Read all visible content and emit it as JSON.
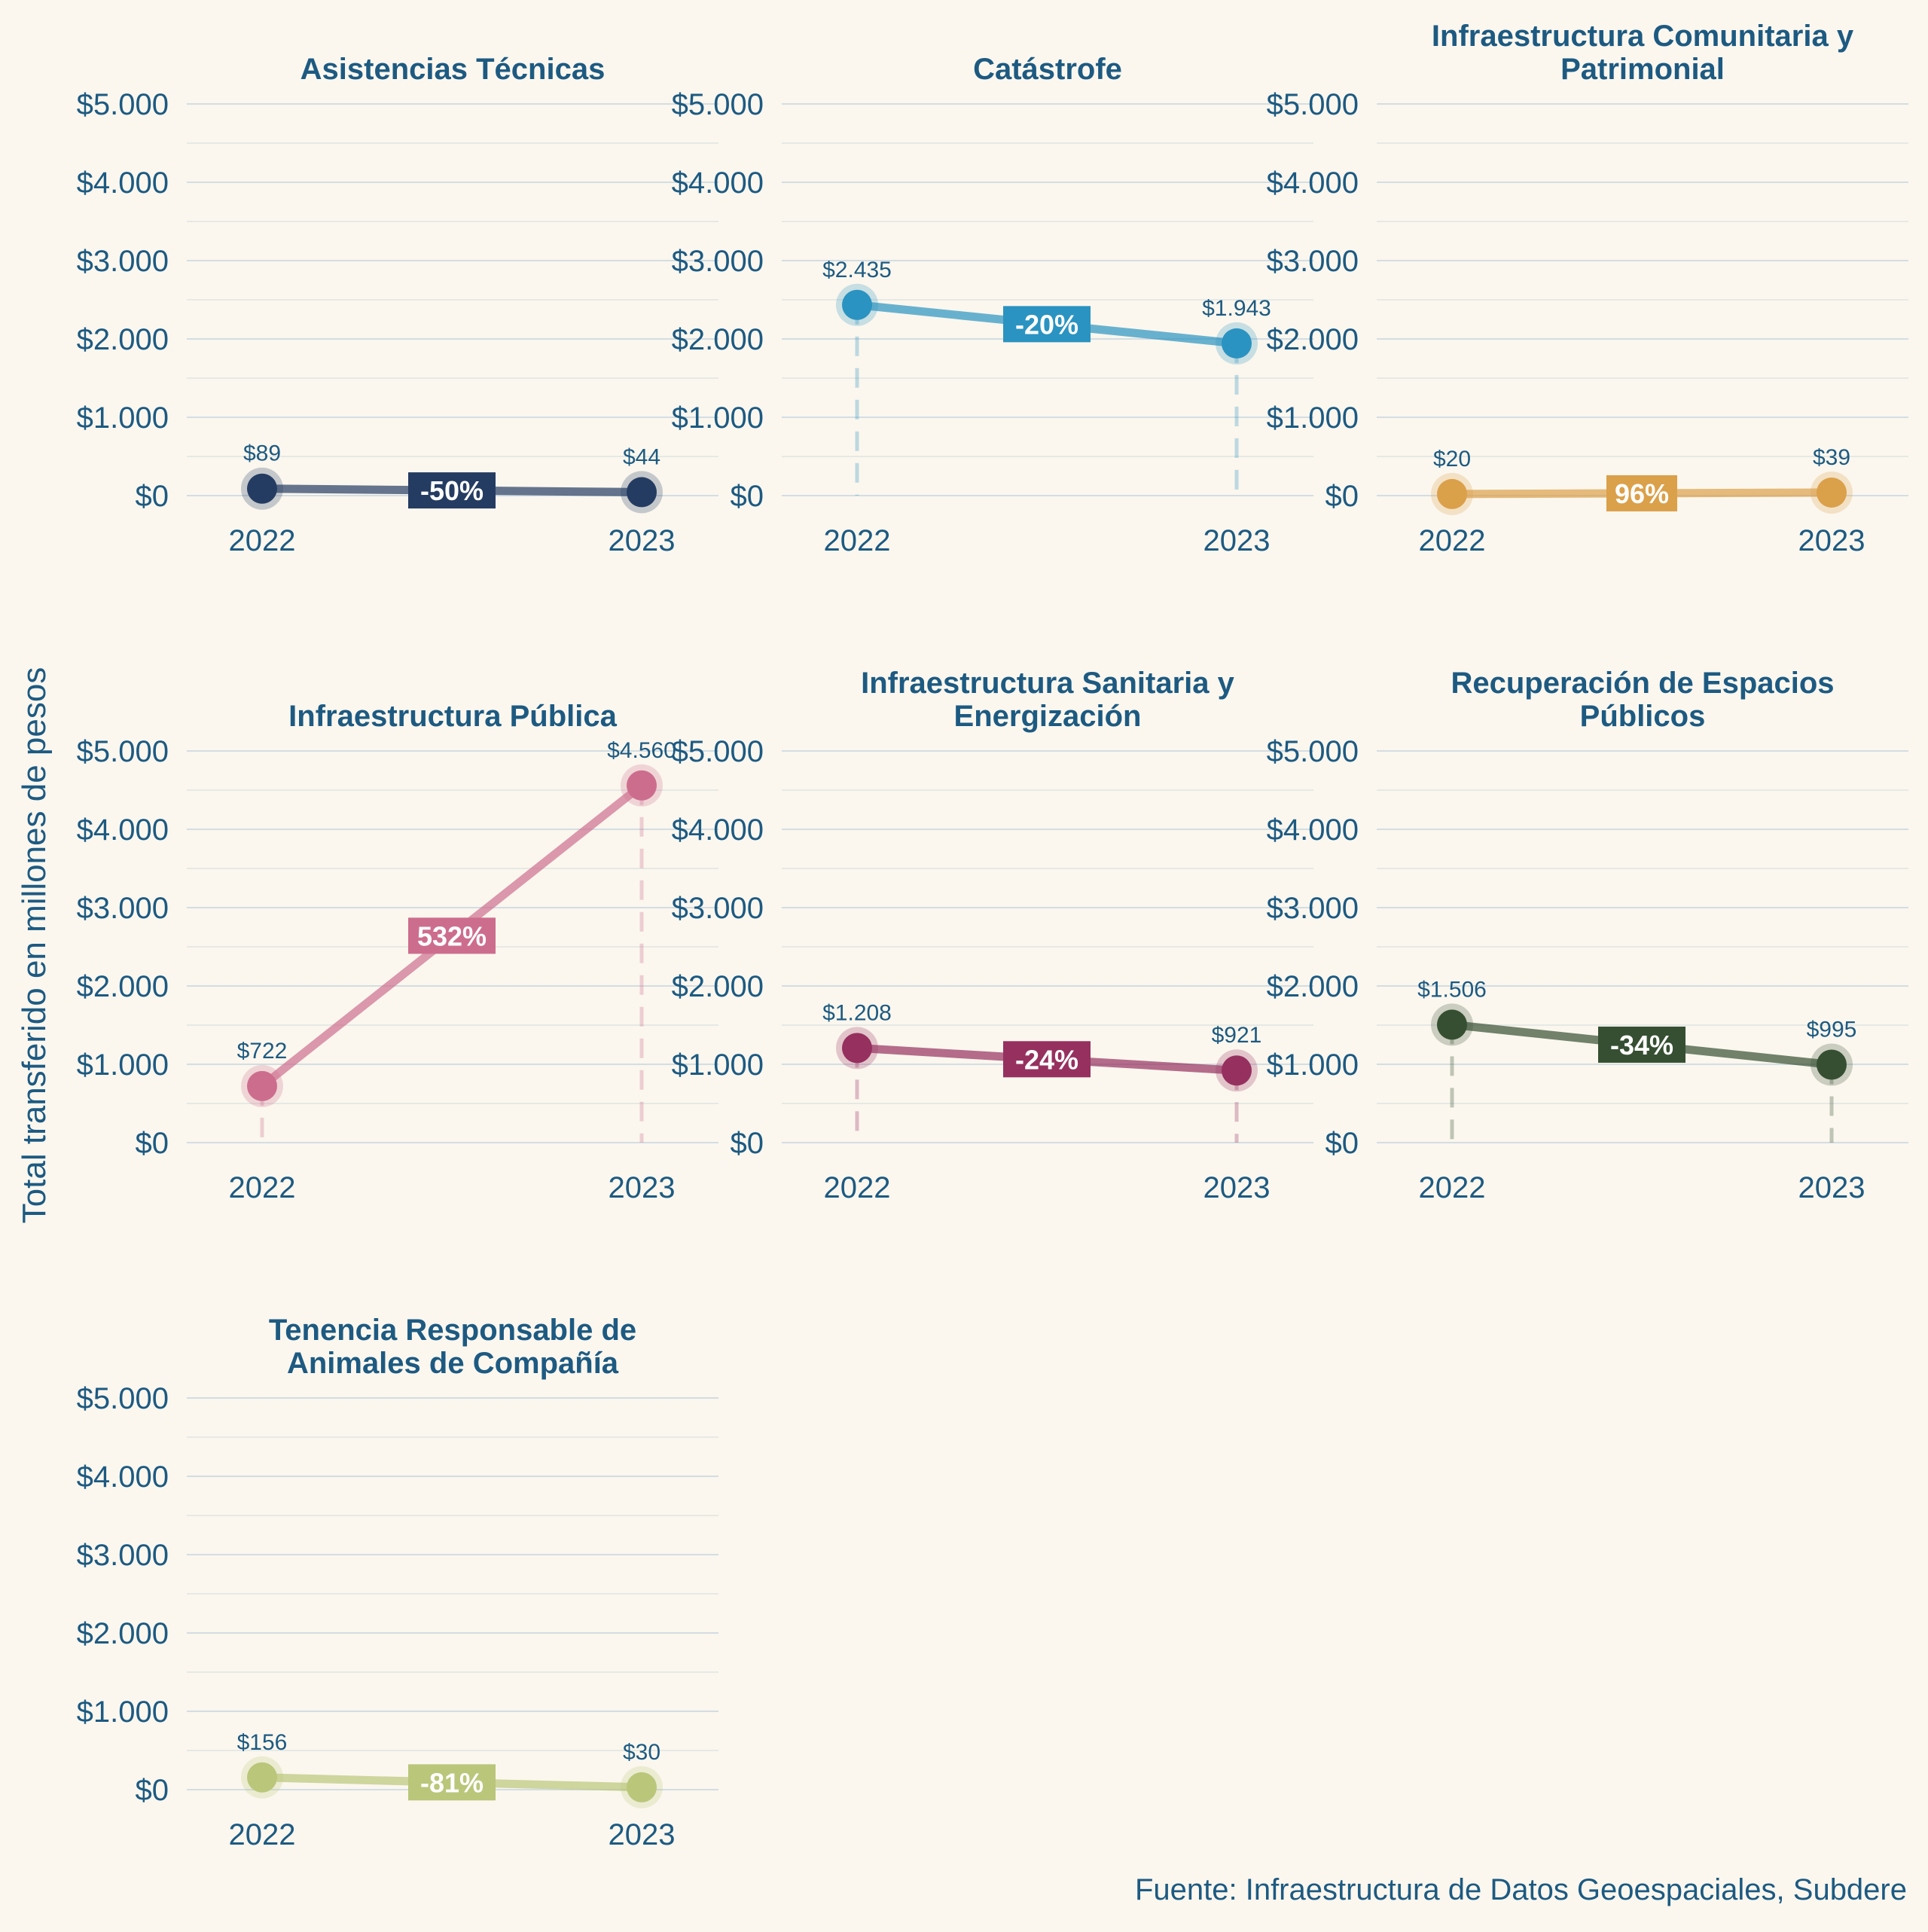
{
  "ylabel": "Total transferido en millones de pesos",
  "source": "Fuente: Infraestructura de Datos Geoespaciales, Subdere",
  "colors": {
    "text": "#1d5a82",
    "grid": "#d3dde3",
    "gridMinor": "#e6e9e4",
    "background": "#fbf7ee"
  },
  "chart_data": {
    "type": "line",
    "facets": true,
    "x": [
      2022,
      2023
    ],
    "x_tick_labels": [
      "2022",
      "2023"
    ],
    "ylim": [
      0,
      5000
    ],
    "y_ticks": [
      0,
      1000,
      2000,
      3000,
      4000,
      5000
    ],
    "y_tick_labels": [
      "$0",
      "$1.000",
      "$2.000",
      "$3.000",
      "$4.000",
      "$5.000"
    ],
    "grid": true,
    "panels": [
      {
        "title": [
          "Asistencias Técnicas"
        ],
        "values": [
          89,
          44
        ],
        "labels": [
          "$89",
          "$44"
        ],
        "change": "-50%",
        "color": "#253c62"
      },
      {
        "title": [
          "Catástrofe"
        ],
        "values": [
          2435,
          1943
        ],
        "labels": [
          "$2.435",
          "$1.943"
        ],
        "change": "-20%",
        "color": "#2a93c1"
      },
      {
        "title": [
          "Infraestructura Comunitaria y",
          "Patrimonial"
        ],
        "values": [
          20,
          39
        ],
        "labels": [
          "$20",
          "$39"
        ],
        "change": "96%",
        "color": "#dba04a"
      },
      {
        "title": [
          "Infraestructura Pública"
        ],
        "values": [
          722,
          4560
        ],
        "labels": [
          "$722",
          "$4.560"
        ],
        "change": "532%",
        "color": "#cd6d8e"
      },
      {
        "title": [
          "Infraestructura Sanitaria y",
          "Energización"
        ],
        "values": [
          1208,
          921
        ],
        "labels": [
          "$1.208",
          "$921"
        ],
        "change": "-24%",
        "color": "#96305f"
      },
      {
        "title": [
          "Recuperación de Espacios",
          "Públicos"
        ],
        "values": [
          1506,
          995
        ],
        "labels": [
          "$1.506",
          "$995"
        ],
        "change": "-34%",
        "color": "#364f32"
      },
      {
        "title": [
          "Tenencia Responsable de",
          "Animales de Compañía"
        ],
        "values": [
          156,
          30
        ],
        "labels": [
          "$156",
          "$30"
        ],
        "change": "-81%",
        "color": "#bac67a"
      }
    ]
  }
}
